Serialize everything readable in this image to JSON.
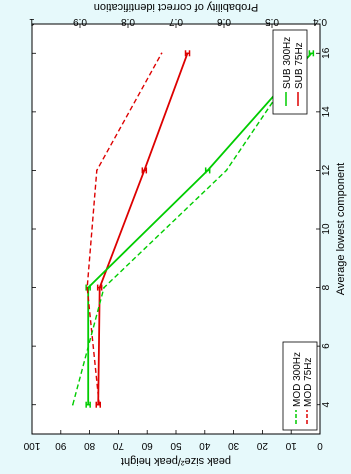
{
  "chart_data": {
    "type": "line",
    "orientation": "rotated-90-clockwise",
    "xlabel": "Average lowest component",
    "ylabel_left": "peak size²/peak height",
    "ylabel_right": "Probability of correct identification",
    "xlim": [
      3,
      17
    ],
    "xticks": [
      "4",
      "6",
      "8",
      "10",
      "12",
      "14",
      "16"
    ],
    "ylim_left": [
      0,
      100
    ],
    "yticks_left": [
      "0",
      "10",
      "20",
      "30",
      "40",
      "50",
      "60",
      "70",
      "80",
      "90",
      "100"
    ],
    "ylim_right": [
      0.4,
      1.0
    ],
    "yticks_right": [
      "0.4",
      "0.5",
      "0.6",
      "0.7",
      "0.8",
      "0.9",
      "1"
    ],
    "grid": false,
    "legends": [
      {
        "position": "upper-right",
        "entries": [
          {
            "label": "SUB 75Hz",
            "color": "#dd0000",
            "style": "solid"
          },
          {
            "label": "SUB 300Hz",
            "color": "#00cc00",
            "style": "solid"
          }
        ]
      },
      {
        "position": "lower-left",
        "entries": [
          {
            "label": "MOD 75Hz",
            "color": "#dd0000",
            "style": "dashed"
          },
          {
            "label": "MOD 300Hz",
            "color": "#00cc00",
            "style": "dashed"
          }
        ]
      }
    ],
    "series": [
      {
        "name": "SUB 75Hz",
        "axis": "left",
        "color": "#dd0000",
        "style": "solid",
        "errorbars": true,
        "x": [
          4,
          8,
          12,
          16
        ],
        "values": [
          77,
          76.5,
          61,
          46
        ]
      },
      {
        "name": "SUB 300Hz",
        "axis": "left",
        "color": "#00cc00",
        "style": "solid",
        "errorbars": true,
        "x": [
          4,
          8,
          12,
          16
        ],
        "values": [
          80.5,
          80.5,
          39,
          3
        ]
      },
      {
        "name": "MOD 75Hz",
        "axis": "right",
        "color": "#dd0000",
        "style": "dashed",
        "x": [
          4,
          8,
          12,
          16
        ],
        "values": [
          0.86,
          0.885,
          0.865,
          0.73
        ]
      },
      {
        "name": "MOD 300Hz",
        "axis": "right",
        "color": "#00cc00",
        "style": "dashed",
        "x": [
          4,
          8,
          12,
          16
        ],
        "values": [
          0.915,
          0.85,
          0.595,
          0.43
        ]
      }
    ]
  }
}
